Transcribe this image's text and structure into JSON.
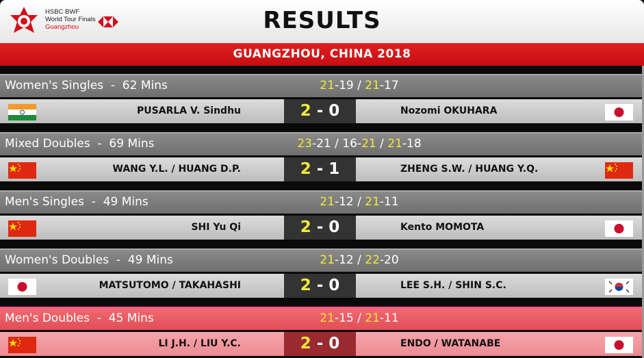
{
  "header": {
    "title": "RESULTS",
    "logo_text": "HSBC BWF World Tour Finals Guangzhou",
    "brand_line1": "HSBC BWF",
    "brand_line2": "World Tour Finals",
    "brand_line3": "Guangzhou"
  },
  "venue": "GUANGZHOU, CHINA 2018",
  "colors": {
    "winner": "#f2e93a",
    "accent": "#d0101c",
    "highlight": "#e24e57"
  },
  "matches": [
    {
      "event": "Women's Singles  -  62 Mins",
      "games": [
        [
          21,
          19
        ],
        [
          21,
          17
        ]
      ],
      "left": {
        "name": "PUSARLA V. Sindhu",
        "flag": "india"
      },
      "right": {
        "name": "Nozomi OKUHARA",
        "flag": "japan"
      },
      "score_left": "2",
      "score_right": "0",
      "highlighted": false
    },
    {
      "event": "Mixed Doubles  -  69 Mins",
      "games": [
        [
          23,
          21
        ],
        [
          16,
          21
        ],
        [
          21,
          18
        ]
      ],
      "left": {
        "name": "WANG Y.L. / HUANG D.P.",
        "flag": "china"
      },
      "right": {
        "name": "ZHENG S.W. / HUANG Y.Q.",
        "flag": "china"
      },
      "score_left": "2",
      "score_right": "1",
      "highlighted": false
    },
    {
      "event": "Men's Singles  -  49 Mins",
      "games": [
        [
          21,
          12
        ],
        [
          21,
          11
        ]
      ],
      "left": {
        "name": "SHI Yu Qi",
        "flag": "china"
      },
      "right": {
        "name": "Kento MOMOTA",
        "flag": "japan"
      },
      "score_left": "2",
      "score_right": "0",
      "highlighted": false
    },
    {
      "event": "Women's Doubles  -  49 Mins",
      "games": [
        [
          21,
          12
        ],
        [
          22,
          20
        ]
      ],
      "left": {
        "name": "MATSUTOMO / TAKAHASHI",
        "flag": "japan"
      },
      "right": {
        "name": "LEE S.H. / SHIN S.C.",
        "flag": "korea"
      },
      "score_left": "2",
      "score_right": "0",
      "highlighted": false
    },
    {
      "event": "Men's Doubles  -  45 Mins",
      "games": [
        [
          21,
          15
        ],
        [
          21,
          11
        ]
      ],
      "left": {
        "name": "LI J.H. / LIU Y.C.",
        "flag": "china"
      },
      "right": {
        "name": "ENDO / WATANABE",
        "flag": "japan"
      },
      "score_left": "2",
      "score_right": "0",
      "highlighted": true
    }
  ]
}
